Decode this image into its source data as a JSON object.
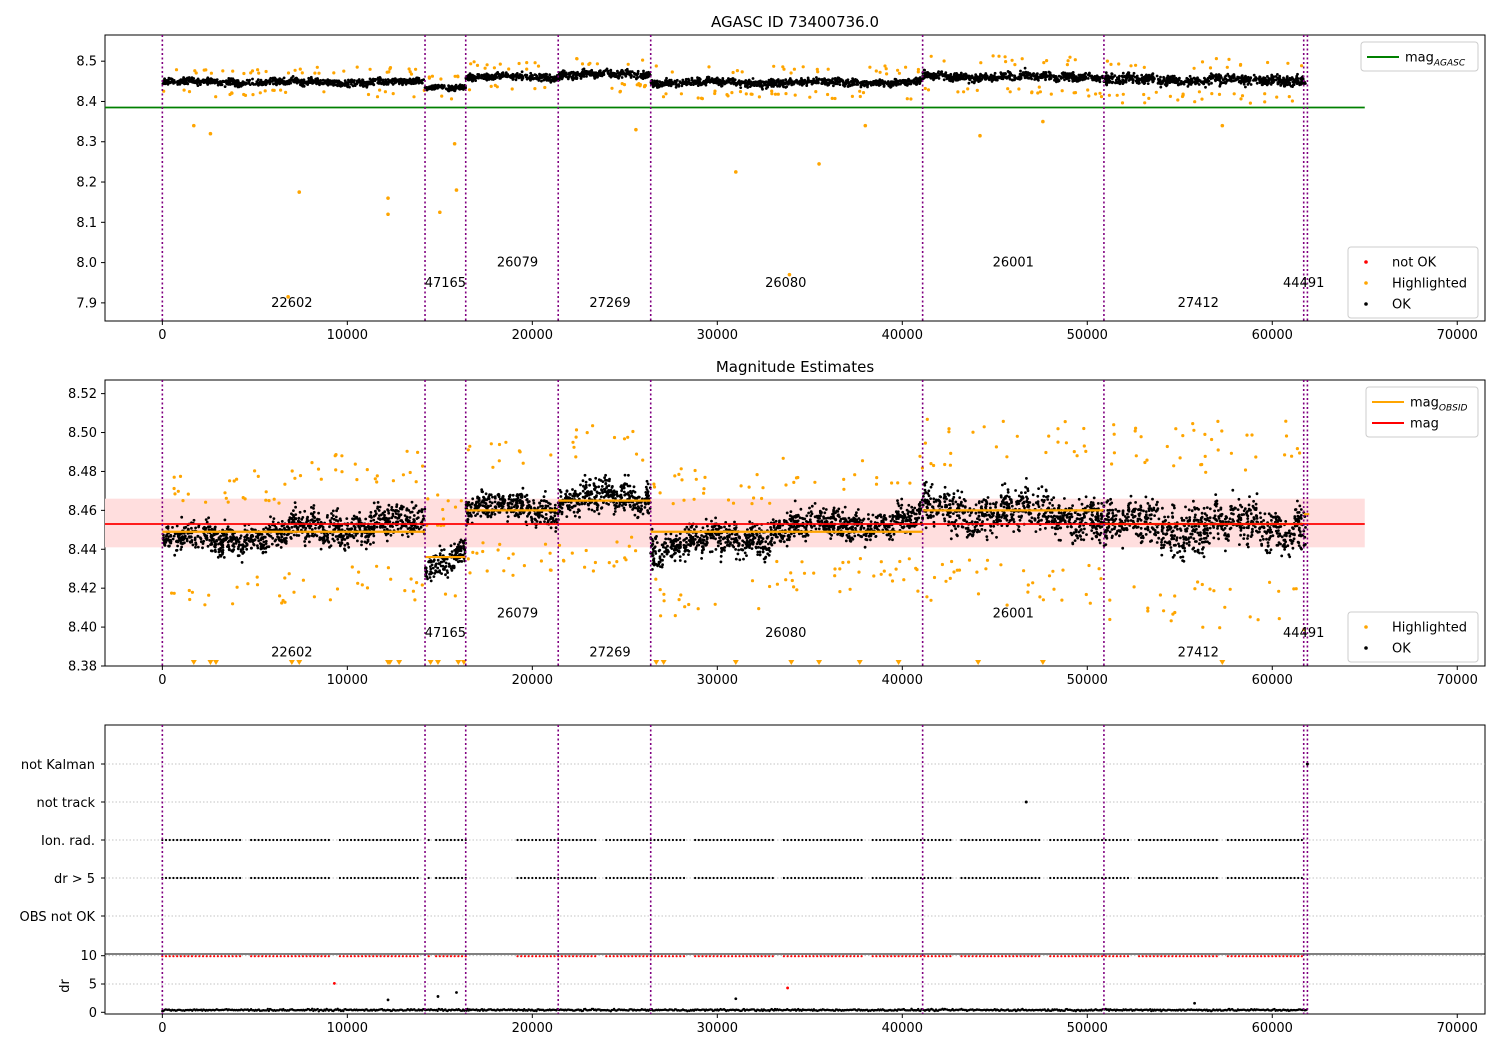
{
  "figure": {
    "panels": [
      {
        "title": "AGASC ID 73400736.0"
      },
      {
        "title": "Magnitude Estimates"
      },
      {
        "title": ""
      }
    ]
  },
  "colors": {
    "ok": "#000000",
    "highlighted": "#ffa500",
    "not_ok": "#ff0000",
    "mag_agasc_line": "#008000",
    "mag_line": "#ff0000",
    "mag_obsid_line": "#ffa500",
    "mag_band": "#ffdede",
    "obsid_divider": "#800080",
    "grid": "#b0b0b0"
  },
  "chart_data": [
    {
      "type": "scatter",
      "title": "AGASC ID 73400736.0",
      "xlim": [
        -3100,
        71500
      ],
      "ylim": [
        7.855,
        8.565
      ],
      "xticks": [
        0,
        10000,
        20000,
        30000,
        40000,
        50000,
        60000,
        70000
      ],
      "yticks": [
        7.9,
        8.0,
        8.1,
        8.2,
        8.3,
        8.4,
        8.5
      ],
      "ytick_labels": [
        "7.9",
        "8.0",
        "8.1",
        "8.2",
        "8.3",
        "8.4",
        "8.5"
      ],
      "obsid_boundaries": [
        0,
        14200,
        16400,
        21400,
        26400,
        41100,
        50900,
        61700,
        61900
      ],
      "obsids": [
        {
          "label": "22602",
          "x": 7000,
          "y": 7.89
        },
        {
          "label": "47165",
          "x": 15300,
          "y": 7.94
        },
        {
          "label": "26079",
          "x": 19200,
          "y": 7.99
        },
        {
          "label": "27269",
          "x": 24200,
          "y": 7.89
        },
        {
          "label": "26080",
          "x": 33700,
          "y": 7.94
        },
        {
          "label": "26001",
          "x": 46000,
          "y": 7.99
        },
        {
          "label": "27412",
          "x": 56000,
          "y": 7.89
        },
        {
          "label": "44491",
          "x": 61700,
          "y": 7.94
        }
      ],
      "horizontal_lines": [
        {
          "name": "mag_AGASC",
          "y": 8.385,
          "x": [
            -3100,
            65000
          ]
        }
      ],
      "segments": [
        {
          "x": [
            0,
            14200
          ],
          "level": 8.448,
          "spread": 0.012
        },
        {
          "x": [
            14200,
            16400
          ],
          "level": 8.436,
          "spread": 0.01
        },
        {
          "x": [
            16400,
            21400
          ],
          "level": 8.461,
          "spread": 0.012
        },
        {
          "x": [
            21400,
            26400
          ],
          "level": 8.467,
          "spread": 0.014
        },
        {
          "x": [
            26400,
            41100
          ],
          "level": 8.447,
          "spread": 0.013
        },
        {
          "x": [
            41100,
            50900
          ],
          "level": 8.462,
          "spread": 0.016
        },
        {
          "x": [
            50900,
            61800
          ],
          "level": 8.453,
          "spread": 0.018
        }
      ],
      "outliers": [
        {
          "x": 1700,
          "y": 8.34
        },
        {
          "x": 2600,
          "y": 8.32
        },
        {
          "x": 7400,
          "y": 8.175
        },
        {
          "x": 12200,
          "y": 8.16
        },
        {
          "x": 12200,
          "y": 8.12
        },
        {
          "x": 6800,
          "y": 7.915
        },
        {
          "x": 15000,
          "y": 8.125
        },
        {
          "x": 15900,
          "y": 8.18
        },
        {
          "x": 15800,
          "y": 8.295
        },
        {
          "x": 31000,
          "y": 8.225
        },
        {
          "x": 35500,
          "y": 8.245
        },
        {
          "x": 38000,
          "y": 8.34
        },
        {
          "x": 33900,
          "y": 7.97
        },
        {
          "x": 44200,
          "y": 8.315
        },
        {
          "x": 47600,
          "y": 8.35
        },
        {
          "x": 57300,
          "y": 8.34
        },
        {
          "x": 25600,
          "y": 8.33
        }
      ],
      "legends": [
        {
          "entries": [
            {
              "label": "mag",
              "sub": "AGASC",
              "kind": "line",
              "color_key": "mag_agasc_line"
            }
          ]
        },
        {
          "entries": [
            {
              "label": "not OK",
              "sub": "",
              "kind": "dot",
              "color_key": "not_ok"
            },
            {
              "label": "Highlighted",
              "sub": "",
              "kind": "dot",
              "color_key": "highlighted"
            },
            {
              "label": "OK",
              "sub": "",
              "kind": "dot",
              "color_key": "ok"
            }
          ]
        }
      ]
    },
    {
      "type": "scatter",
      "title": "Magnitude Estimates",
      "xlim": [
        -3100,
        71500
      ],
      "ylim": [
        8.38,
        8.527
      ],
      "xticks": [
        0,
        10000,
        20000,
        30000,
        40000,
        50000,
        60000,
        70000
      ],
      "yticks": [
        8.38,
        8.4,
        8.42,
        8.44,
        8.46,
        8.48,
        8.5,
        8.52
      ],
      "ytick_labels": [
        "8.38",
        "8.40",
        "8.42",
        "8.44",
        "8.46",
        "8.48",
        "8.50",
        "8.52"
      ],
      "obsid_boundaries": [
        0,
        14200,
        16400,
        21400,
        26400,
        41100,
        50900,
        61700,
        61900
      ],
      "obsids": [
        {
          "label": "22602",
          "x": 7000,
          "y": 8.385
        },
        {
          "label": "47165",
          "x": 15300,
          "y": 8.395
        },
        {
          "label": "26079",
          "x": 19200,
          "y": 8.405
        },
        {
          "label": "27269",
          "x": 24200,
          "y": 8.385
        },
        {
          "label": "26080",
          "x": 33700,
          "y": 8.395
        },
        {
          "label": "26001",
          "x": 46000,
          "y": 8.405
        },
        {
          "label": "27412",
          "x": 56000,
          "y": 8.385
        },
        {
          "label": "44491",
          "x": 61700,
          "y": 8.395
        }
      ],
      "mag": {
        "value": 8.453,
        "band": [
          8.441,
          8.466
        ],
        "x": [
          -3100,
          65000
        ]
      },
      "mag_obsid": [
        {
          "x": [
            0,
            14200
          ],
          "value": 8.449
        },
        {
          "x": [
            14200,
            16400
          ],
          "value": 8.436
        },
        {
          "x": [
            16400,
            21400
          ],
          "value": 8.46
        },
        {
          "x": [
            21400,
            26400
          ],
          "value": 8.465
        },
        {
          "x": [
            26400,
            41100
          ],
          "value": 8.449
        },
        {
          "x": [
            41100,
            50900
          ],
          "value": 8.46
        },
        {
          "x": [
            50900,
            61700
          ],
          "value": 8.453
        },
        {
          "x": [
            61700,
            62000
          ],
          "value": 8.458
        }
      ],
      "segments": [
        {
          "x": [
            0,
            7000
          ],
          "level": 8.446,
          "spread": 0.011,
          "trend": 0.004
        },
        {
          "x": [
            7000,
            14200
          ],
          "level": 8.452,
          "spread": 0.012,
          "trend": 0.004
        },
        {
          "x": [
            14200,
            16400
          ],
          "level": 8.436,
          "spread": 0.01,
          "trend": 0.01
        },
        {
          "x": [
            16400,
            21400
          ],
          "level": 8.461,
          "spread": 0.011,
          "trend": 0.0
        },
        {
          "x": [
            21400,
            26400
          ],
          "level": 8.466,
          "spread": 0.012,
          "trend": 0.0
        },
        {
          "x": [
            26400,
            33000
          ],
          "level": 8.444,
          "spread": 0.012,
          "trend": 0.006
        },
        {
          "x": [
            33000,
            41100
          ],
          "level": 8.453,
          "spread": 0.011,
          "trend": 0.004
        },
        {
          "x": [
            41100,
            50900
          ],
          "level": 8.459,
          "spread": 0.015,
          "trend": -0.004
        },
        {
          "x": [
            50900,
            61800
          ],
          "level": 8.452,
          "spread": 0.017,
          "trend": 0.0
        }
      ],
      "clipped_markers_x": [
        1700,
        2600,
        2900,
        7000,
        7400,
        12200,
        12300,
        12800,
        14500,
        14900,
        16000,
        16300,
        26700,
        27100,
        31000,
        34000,
        35500,
        37700,
        39800,
        44100,
        47600,
        57300
      ],
      "legends": [
        {
          "entries": [
            {
              "label": "mag",
              "sub": "OBSID",
              "kind": "line",
              "color_key": "mag_obsid_line"
            },
            {
              "label": "mag",
              "sub": "",
              "kind": "line",
              "color_key": "mag_line"
            }
          ]
        },
        {
          "entries": [
            {
              "label": "Highlighted",
              "sub": "",
              "kind": "dot",
              "color_key": "highlighted"
            },
            {
              "label": "OK",
              "sub": "",
              "kind": "dot",
              "color_key": "ok"
            }
          ]
        }
      ]
    },
    {
      "type": "scatter",
      "title": "",
      "xlim": [
        -3100,
        71500
      ],
      "flags": [
        "not Kalman",
        "not track",
        "Ion. rad.",
        "dr > 5",
        "OBS not OK"
      ],
      "flag_points": {
        "not Kalman": [
          61900
        ],
        "not track": [
          46700
        ],
        "Ion. rad.": "periodic",
        "dr > 5": "periodic"
      },
      "obsid_boundaries": [
        0,
        14200,
        16400,
        21400,
        26400,
        41100,
        50900,
        61700,
        61900
      ]
    },
    {
      "type": "scatter",
      "title": "",
      "xlim": [
        -3100,
        71500
      ],
      "ylim": [
        -0.3,
        10.3
      ],
      "ylabel": "dr",
      "xticks": [
        0,
        10000,
        20000,
        30000,
        40000,
        50000,
        60000,
        70000
      ],
      "yticks": [
        0,
        5,
        10
      ],
      "ytick_labels": [
        "0",
        "5",
        "10"
      ],
      "clipped_at": 10,
      "baseline": {
        "level": 0.4,
        "spread": 0.25
      },
      "outliers": [
        {
          "x": 9300,
          "y": 5.1
        },
        {
          "x": 12200,
          "y": 2.2
        },
        {
          "x": 14900,
          "y": 2.8
        },
        {
          "x": 15900,
          "y": 3.5
        },
        {
          "x": 31000,
          "y": 2.4
        },
        {
          "x": 33800,
          "y": 4.3
        },
        {
          "x": 55800,
          "y": 1.6
        }
      ],
      "obsid_boundaries": [
        0,
        14200,
        16400,
        21400,
        26400,
        41100,
        50900,
        61700,
        61900
      ]
    }
  ]
}
